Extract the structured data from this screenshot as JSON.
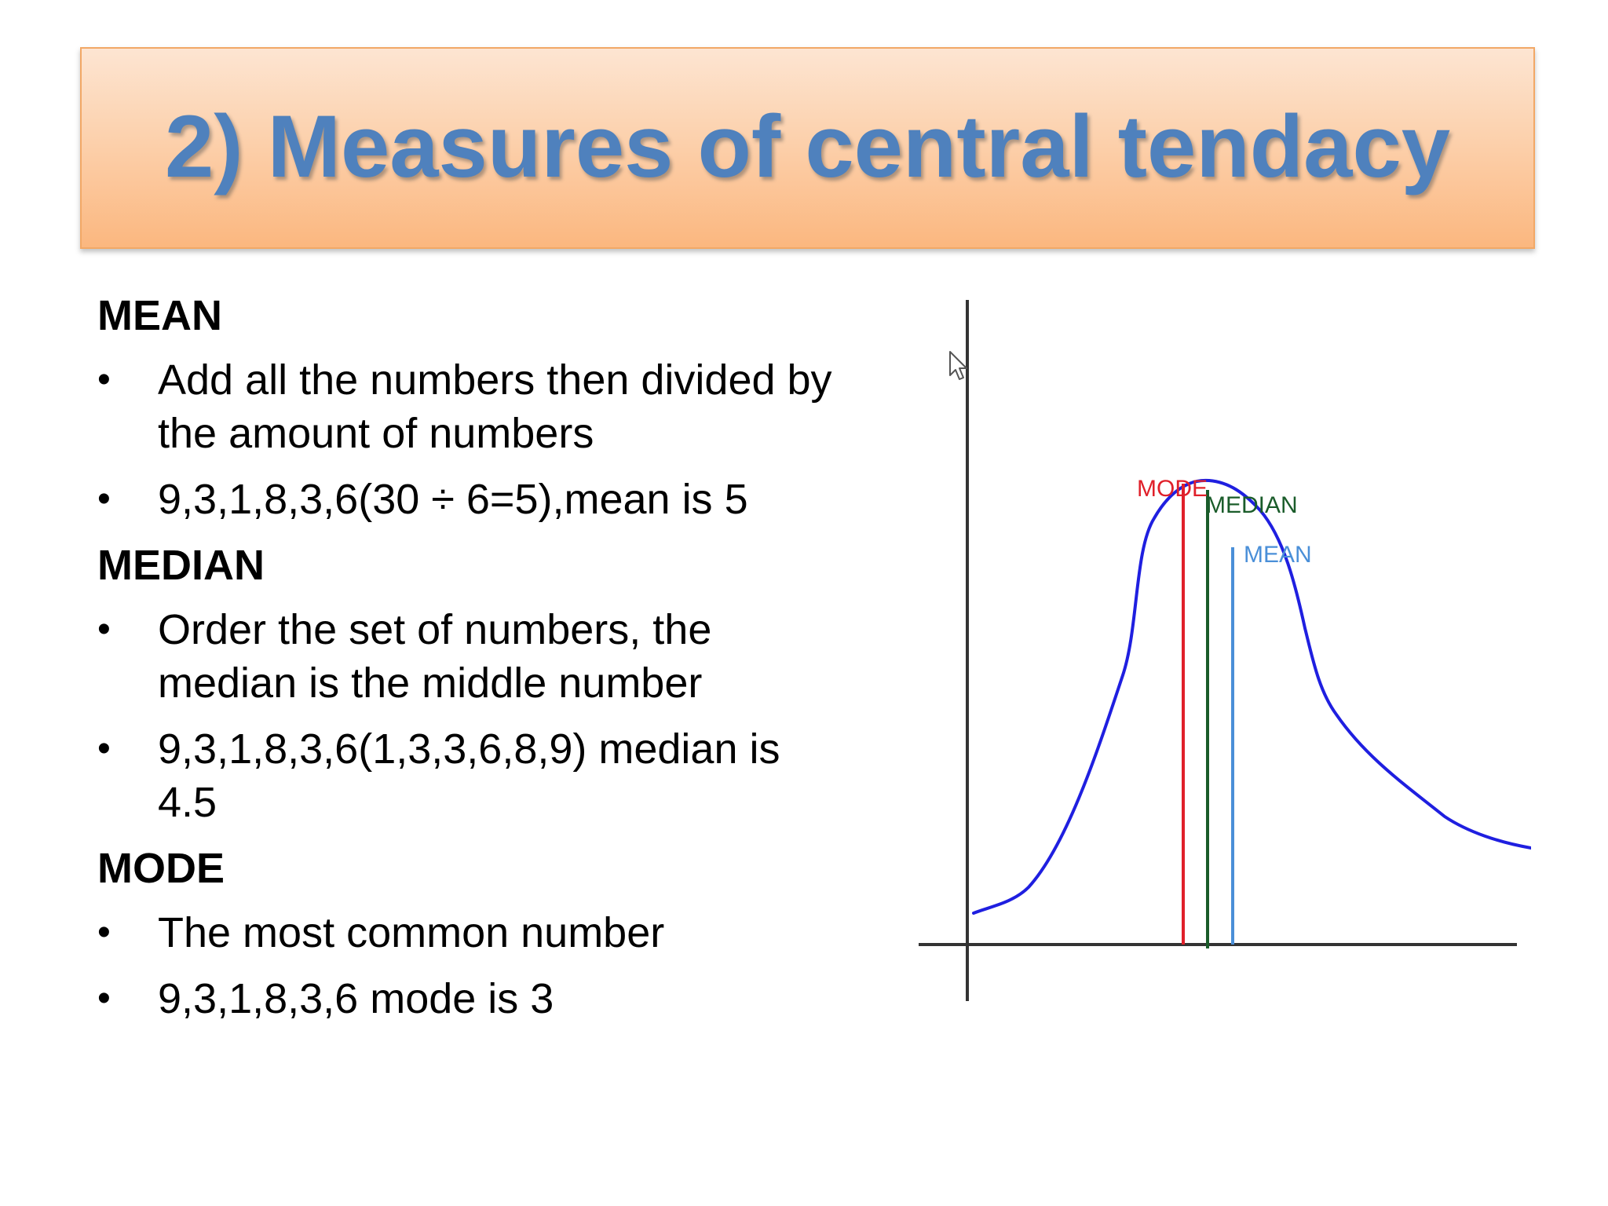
{
  "slide": {
    "title": "2) Measures of central tendacy",
    "sections": [
      {
        "heading": "MEAN",
        "bullets": [
          "Add all the numbers then divided by the amount of numbers",
          "9,3,1,8,3,6(30 ÷ 6=5),mean is 5"
        ]
      },
      {
        "heading": "MEDIAN",
        "bullets": [
          "Order the set of numbers, the median is the middle number",
          "9,3,1,8,3,6(1,3,3,6,8,9) median is 4.5"
        ]
      },
      {
        "heading": "MODE",
        "bullets": [
          "The most common number",
          "9,3,1,8,3,6 mode is 3"
        ]
      }
    ],
    "bullet_glyph": "•"
  },
  "diagram": {
    "labels": {
      "mode": "MODE",
      "median": "MEDIAN",
      "mean": "MEAN"
    },
    "colors": {
      "curve": "#1f1fe0",
      "mode": "#e0202a",
      "median": "#1a5c2a",
      "mean": "#4a8fd8",
      "axis": "#333333"
    }
  },
  "icons": {
    "cursor": "mouse-pointer-icon"
  }
}
